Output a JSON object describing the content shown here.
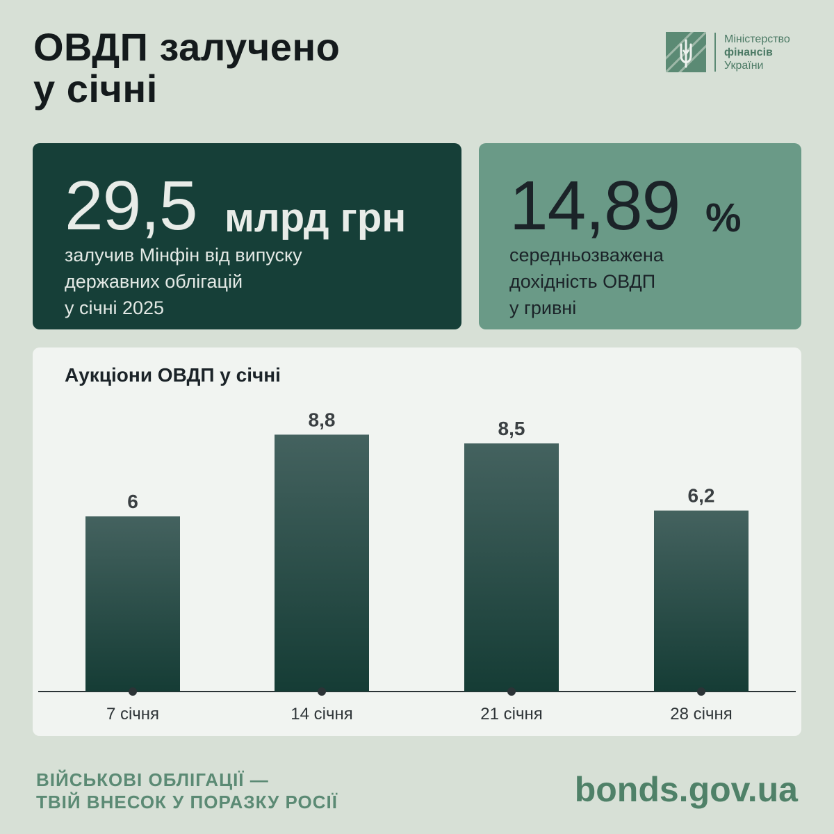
{
  "header": {
    "title_line1": "ОВДП залучено",
    "title_line2": "у січні"
  },
  "logo": {
    "line1": "Міністерство",
    "line2": "фінансів",
    "line3": "України",
    "icon": "trident-icon"
  },
  "card_raised": {
    "value": "29,5",
    "unit": "млрд грн",
    "desc_line1": "залучив Мінфін від випуску",
    "desc_line2": "державних облігацій",
    "desc_line3": "у січні 2025"
  },
  "card_yield": {
    "value": "14,89",
    "unit": "%",
    "desc_line1": "середньозважена",
    "desc_line2": "дохідність ОВДП",
    "desc_line3": "у гривні"
  },
  "chart_data": {
    "type": "bar",
    "title": "Аукціони ОВДП у січні",
    "categories": [
      "7 січня",
      "14 січня",
      "21 січня",
      "28 січня"
    ],
    "values": [
      6,
      8.8,
      8.5,
      6.2
    ],
    "value_labels": [
      "6",
      "8,8",
      "8,5",
      "6,2"
    ],
    "ylim": [
      0,
      10
    ],
    "xlabel": "",
    "ylabel": "",
    "grid": false
  },
  "footer": {
    "slogan_line1": "ВІЙСЬКОВІ ОБЛІГАЦІЇ —",
    "slogan_line2": "ТВІЙ ВНЕСОК У ПОРАЗКУ РОСІЇ",
    "url": "bonds.gov.ua"
  },
  "colors": {
    "background": "#d7e0d6",
    "dark_card": "#163f38",
    "light_card": "#6a9a87",
    "bar_top": "#44625f",
    "bar_bottom": "#153c35",
    "accent": "#5b8a74"
  }
}
